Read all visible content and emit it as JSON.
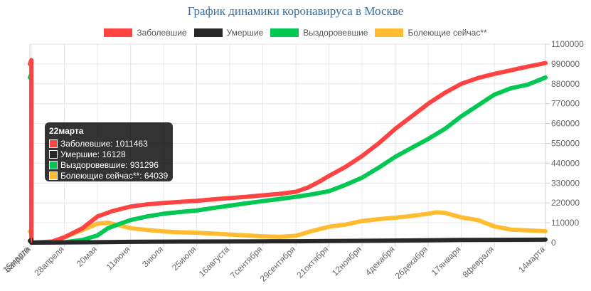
{
  "chart_data": {
    "type": "line",
    "title": "График динамики коронавируса в Москве",
    "xlabel": "",
    "ylabel": "",
    "ylim": [
      0,
      1100000
    ],
    "y_ticks": [
      0,
      110000,
      220000,
      330000,
      440000,
      550000,
      660000,
      770000,
      880000,
      990000,
      1100000
    ],
    "y_axis_position": "right",
    "legend_position": "top",
    "grid": true,
    "x_tick_labels": [
      "15марта",
      "6апреля",
      "28апреля",
      "20мая",
      "11июня",
      "3июля",
      "25июля",
      "16августа",
      "7сентября",
      "29сентября",
      "21октября",
      "12ноября",
      "4декабря",
      "26декабря",
      "17января",
      "8февраля",
      "14марта"
    ],
    "x_tick_index": [
      0,
      1,
      23,
      45,
      67,
      89,
      111,
      133,
      155,
      177,
      199,
      221,
      243,
      265,
      287,
      309,
      343
    ],
    "series": [
      {
        "name": "Заболевшие",
        "color": "#ff4343",
        "points": [
          [
            0,
            990000
          ],
          [
            1,
            1011463
          ],
          [
            1,
            0
          ],
          [
            15,
            6000
          ],
          [
            23,
            30000
          ],
          [
            35,
            80000
          ],
          [
            45,
            145000
          ],
          [
            55,
            175000
          ],
          [
            67,
            200000
          ],
          [
            78,
            212000
          ],
          [
            89,
            220000
          ],
          [
            100,
            226000
          ],
          [
            111,
            232000
          ],
          [
            122,
            240000
          ],
          [
            133,
            247000
          ],
          [
            144,
            254000
          ],
          [
            155,
            262000
          ],
          [
            166,
            270000
          ],
          [
            177,
            282000
          ],
          [
            185,
            305000
          ],
          [
            192,
            335000
          ],
          [
            199,
            370000
          ],
          [
            210,
            420000
          ],
          [
            221,
            480000
          ],
          [
            232,
            550000
          ],
          [
            243,
            630000
          ],
          [
            254,
            700000
          ],
          [
            265,
            770000
          ],
          [
            276,
            830000
          ],
          [
            287,
            880000
          ],
          [
            298,
            912000
          ],
          [
            309,
            935000
          ],
          [
            320,
            955000
          ],
          [
            331,
            975000
          ],
          [
            343,
            995000
          ]
        ]
      },
      {
        "name": "Умершие",
        "color": "#282828",
        "points": [
          [
            0,
            10000
          ],
          [
            1,
            16128
          ],
          [
            1,
            0
          ],
          [
            23,
            1000
          ],
          [
            45,
            2500
          ],
          [
            67,
            4500
          ],
          [
            89,
            5500
          ],
          [
            111,
            6000
          ],
          [
            133,
            6500
          ],
          [
            155,
            7000
          ],
          [
            177,
            7500
          ],
          [
            199,
            8500
          ],
          [
            221,
            10000
          ],
          [
            243,
            11500
          ],
          [
            265,
            13000
          ],
          [
            287,
            14500
          ],
          [
            309,
            15500
          ],
          [
            343,
            16500
          ]
        ]
      },
      {
        "name": "Выздоровевшие",
        "color": "#00c852",
        "points": [
          [
            0,
            915000
          ],
          [
            1,
            931296
          ],
          [
            1,
            0
          ],
          [
            23,
            2000
          ],
          [
            35,
            15000
          ],
          [
            45,
            40000
          ],
          [
            52,
            80000
          ],
          [
            60,
            105000
          ],
          [
            67,
            125000
          ],
          [
            78,
            145000
          ],
          [
            89,
            160000
          ],
          [
            100,
            170000
          ],
          [
            111,
            178000
          ],
          [
            122,
            192000
          ],
          [
            133,
            205000
          ],
          [
            144,
            218000
          ],
          [
            155,
            230000
          ],
          [
            166,
            242000
          ],
          [
            177,
            254000
          ],
          [
            188,
            268000
          ],
          [
            199,
            285000
          ],
          [
            210,
            320000
          ],
          [
            221,
            360000
          ],
          [
            232,
            415000
          ],
          [
            243,
            475000
          ],
          [
            254,
            525000
          ],
          [
            265,
            575000
          ],
          [
            276,
            630000
          ],
          [
            287,
            700000
          ],
          [
            298,
            760000
          ],
          [
            309,
            820000
          ],
          [
            320,
            855000
          ],
          [
            331,
            875000
          ],
          [
            343,
            915000
          ]
        ]
      },
      {
        "name": "Болеющие сейчас**",
        "color": "#ffbc30",
        "points": [
          [
            0,
            62000
          ],
          [
            1,
            64039
          ],
          [
            1,
            0
          ],
          [
            15,
            6000
          ],
          [
            23,
            30000
          ],
          [
            35,
            70000
          ],
          [
            45,
            105000
          ],
          [
            52,
            110000
          ],
          [
            60,
            95000
          ],
          [
            67,
            80000
          ],
          [
            78,
            70000
          ],
          [
            89,
            62000
          ],
          [
            100,
            57000
          ],
          [
            111,
            55000
          ],
          [
            122,
            50000
          ],
          [
            133,
            45000
          ],
          [
            144,
            40000
          ],
          [
            155,
            35000
          ],
          [
            166,
            32000
          ],
          [
            177,
            38000
          ],
          [
            188,
            65000
          ],
          [
            199,
            88000
          ],
          [
            210,
            100000
          ],
          [
            221,
            120000
          ],
          [
            232,
            130000
          ],
          [
            243,
            138000
          ],
          [
            254,
            148000
          ],
          [
            265,
            160000
          ],
          [
            270,
            168000
          ],
          [
            276,
            165000
          ],
          [
            287,
            140000
          ],
          [
            298,
            125000
          ],
          [
            309,
            90000
          ],
          [
            320,
            72000
          ],
          [
            331,
            68000
          ],
          [
            343,
            63000
          ]
        ]
      }
    ]
  },
  "tooltip": {
    "title": "22марта",
    "rows": [
      {
        "label": "Заболевшие: 1011463",
        "color": "#ff4343"
      },
      {
        "label": "Умершие: 16128",
        "color": "#282828"
      },
      {
        "label": "Выздоровевшие: 931296",
        "color": "#00c852"
      },
      {
        "label": "Болеющие сейчас**: 64039",
        "color": "#ffbc30"
      }
    ]
  }
}
